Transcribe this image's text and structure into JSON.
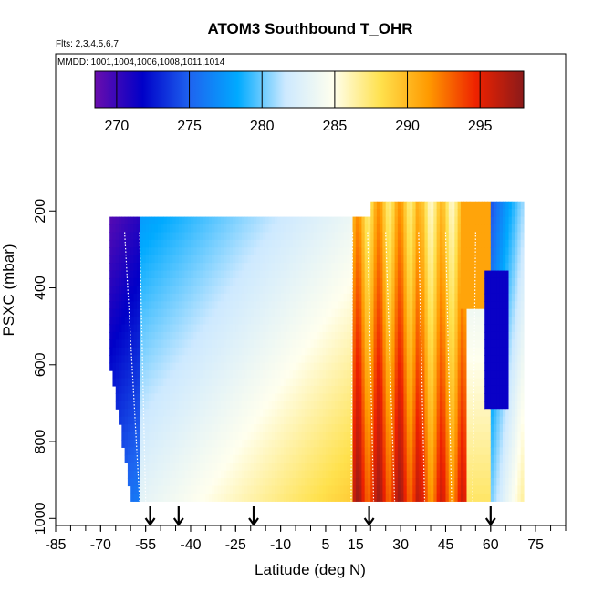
{
  "chart_data": {
    "type": "heatmap",
    "title": "ATOM3 Southbound T_OHR",
    "subtitle_flights": "Flts: 2,3,4,5,6,7",
    "subtitle_dates": "MMDD: 1001,1004,1006,1008,1011,1014",
    "xlabel": "Latitude (deg N)",
    "ylabel": "PSXC (mbar)",
    "xlim": [
      -85,
      85
    ],
    "ylim": [
      1000,
      0
    ],
    "y_reversed": true,
    "x_ticks": [
      "-85",
      "-70",
      "-55",
      "-40",
      "-25",
      "-10",
      "5",
      "15",
      "30",
      "45",
      "60",
      "75"
    ],
    "x_tick_values": [
      -85,
      -70,
      -55,
      -40,
      -25,
      -10,
      5,
      15,
      30,
      45,
      60,
      75
    ],
    "y_ticks": [
      "200",
      "400",
      "600",
      "800",
      "1000"
    ],
    "y_tick_values": [
      200,
      400,
      600,
      800,
      1000
    ],
    "colorbar": {
      "range": [
        268.5,
        298
      ],
      "ticks": [
        "270",
        "275",
        "280",
        "285",
        "290",
        "295"
      ],
      "tick_values": [
        270,
        275,
        280,
        285,
        290,
        295
      ]
    },
    "profile_markers_lat": [
      -53.5,
      -44,
      -19,
      19.5,
      60
    ],
    "colors": {
      "ramp": [
        "#6a0dad",
        "#0000c8",
        "#1e64f0",
        "#00aaff",
        "#cde9ff",
        "#ffffee",
        "#ffe14d",
        "#ff9a00",
        "#ee2200",
        "#8b1a1a"
      ]
    }
  }
}
